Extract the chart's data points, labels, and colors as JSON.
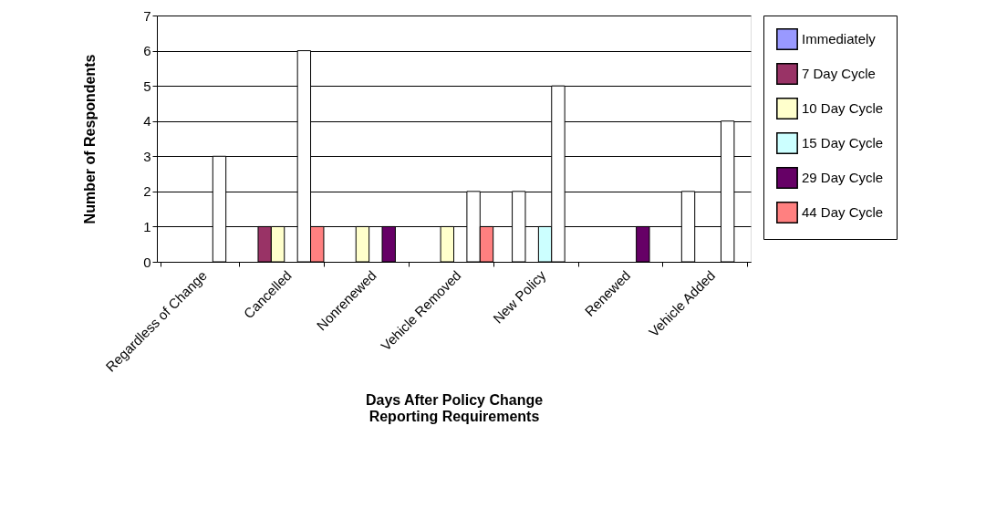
{
  "chart_data": {
    "type": "bar",
    "xlabel": "Days After Policy Change\nReporting Requirements",
    "ylabel": "Number of Respondents",
    "categories": [
      "Regardless of Change",
      "Cancelled",
      "Nonrenewed",
      "Vehicle Removed",
      "New Policy",
      "Renewed",
      "Vehicle Added"
    ],
    "series": [
      {
        "name": "Immediately",
        "color": "#9999ff",
        "values": [
          null,
          null,
          null,
          null,
          null,
          null,
          null
        ]
      },
      {
        "name": "7 Day Cycle",
        "color": "#993366",
        "values": [
          null,
          1,
          null,
          null,
          2,
          null,
          2
        ],
        "colors": [
          null,
          "#993366",
          null,
          null,
          "#ffffff",
          null,
          "#ffffff"
        ]
      },
      {
        "name": "10 Day Cycle",
        "color": "#ffffcc",
        "values": [
          null,
          1,
          1,
          1,
          null,
          null,
          null
        ]
      },
      {
        "name": "15 Day Cycle",
        "color": "#ccffff",
        "values": [
          null,
          null,
          null,
          null,
          1,
          null,
          null
        ]
      },
      {
        "name": "29 Day Cycle",
        "color": "#660066",
        "values": [
          3,
          6,
          1,
          2,
          5,
          1,
          4
        ],
        "colors": [
          "#ffffff",
          "#ffffff",
          "#660066",
          "#ffffff",
          "#ffffff",
          "#660066",
          "#ffffff"
        ]
      },
      {
        "name": "44 Day Cycle",
        "color": "#ff8080",
        "values": [
          null,
          1,
          null,
          1,
          null,
          null,
          null
        ]
      }
    ],
    "ylim": [
      0,
      7
    ],
    "yticks": [
      0,
      1,
      2,
      3,
      4,
      5,
      6,
      7
    ],
    "grid": "y",
    "legend": "right"
  }
}
